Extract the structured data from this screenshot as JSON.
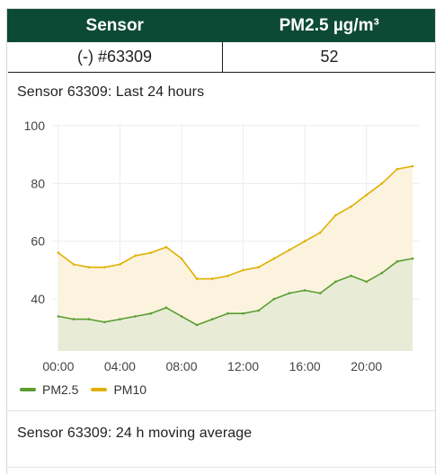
{
  "table": {
    "headers": [
      "Sensor",
      "PM2.5 µg/m³"
    ],
    "row": {
      "sensor": "(-) #63309",
      "value": "52"
    }
  },
  "cards": [
    {
      "title": "Sensor 63309: Last 24 hours"
    },
    {
      "title": "Sensor 63309: 24 h moving average"
    }
  ],
  "colors": {
    "header_bg": "#0d4a36",
    "pm25": "#5a9e32",
    "pm10": "#e0b000",
    "pm25_fill": "#e8ecd6",
    "pm10_fill": "#fbf3de"
  },
  "chart_data": {
    "type": "area",
    "title": "Sensor 63309: Last 24 hours",
    "xlabel": "",
    "ylabel": "",
    "x_ticks": [
      "00:00",
      "04:00",
      "08:00",
      "12:00",
      "16:00",
      "20:00"
    ],
    "y_ticks": [
      40,
      60,
      80,
      100
    ],
    "ylim": [
      22,
      100
    ],
    "xlim_hours": [
      -0.4,
      23.4
    ],
    "grid": true,
    "legend_position": "bottom-left",
    "series": [
      {
        "name": "PM2.5",
        "color": "#5a9e32",
        "x_hours": [
          0,
          1,
          2,
          3,
          4,
          5,
          6,
          7,
          8,
          9,
          10,
          11,
          12,
          13,
          14,
          15,
          16,
          17,
          18,
          19,
          20,
          21,
          22,
          23
        ],
        "values": [
          34,
          33,
          33,
          32,
          33,
          34,
          35,
          37,
          34,
          31,
          33,
          35,
          35,
          36,
          40,
          42,
          43,
          42,
          46,
          48,
          46,
          49,
          53,
          54
        ]
      },
      {
        "name": "PM10",
        "color": "#e0b000",
        "x_hours": [
          0,
          1,
          2,
          3,
          4,
          5,
          6,
          7,
          8,
          9,
          10,
          11,
          12,
          13,
          14,
          15,
          16,
          17,
          18,
          19,
          20,
          21,
          22,
          23
        ],
        "values": [
          56,
          52,
          51,
          51,
          52,
          55,
          56,
          58,
          54,
          47,
          47,
          48,
          50,
          51,
          54,
          57,
          60,
          63,
          69,
          72,
          76,
          80,
          85,
          86
        ]
      }
    ]
  }
}
